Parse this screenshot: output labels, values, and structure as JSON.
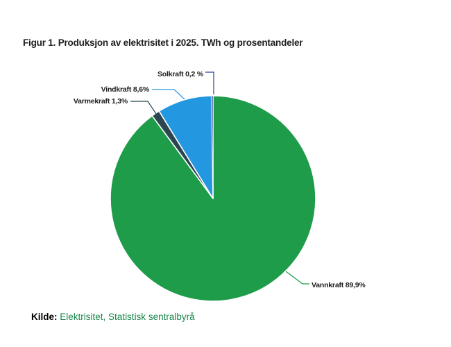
{
  "figure": {
    "title": "Figur 1. Produksjon av elektrisitet i 2025. TWh og prosentandeler"
  },
  "chart_data": {
    "type": "pie",
    "title": "Figur 1. Produksjon av elektrisitet i 2025. TWh og prosentandeler",
    "unit": "percent",
    "direction": "clockwise",
    "start_angle_deg": 0,
    "legend_position": "none",
    "slices": [
      {
        "label": "Vannkraft",
        "value": 89.9,
        "display": "Vannkraft 89,9%",
        "color": "#1e9c49"
      },
      {
        "label": "Varmekraft",
        "value": 1.3,
        "display": "Varmekraft 1,3%",
        "color": "#2b4551"
      },
      {
        "label": "Vindkraft",
        "value": 8.6,
        "display": "Vindkraft 8,6%",
        "color": "#2397df"
      },
      {
        "label": "Solkraft",
        "value": 0.2,
        "display": "Solkraft 0,2 %",
        "color": "#2e4199"
      }
    ]
  },
  "footer": {
    "source_label": "Kilde:",
    "source_link": "Elektrisitet, Statistisk sentralbyrå"
  },
  "colors": {
    "background": "#ffffff",
    "slice_border": "#ffffff",
    "vannkraft_green": "#1e9c49",
    "vindkraft_blue": "#2397df",
    "varmekraft_dark": "#2b4551",
    "solkraft_navy": "#2e4199",
    "source_link_green": "#17874a"
  }
}
